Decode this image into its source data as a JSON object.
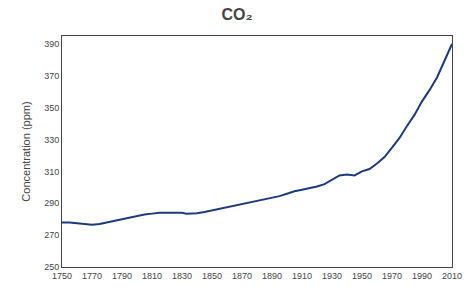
{
  "chart_data": {
    "type": "line",
    "title": "CO₂",
    "ylabel": "Concentration (ppm)",
    "x": [
      1750,
      1755,
      1760,
      1765,
      1770,
      1775,
      1780,
      1785,
      1790,
      1795,
      1800,
      1805,
      1810,
      1815,
      1820,
      1825,
      1830,
      1833,
      1836,
      1840,
      1845,
      1850,
      1855,
      1860,
      1865,
      1870,
      1875,
      1880,
      1885,
      1890,
      1895,
      1900,
      1905,
      1910,
      1915,
      1920,
      1925,
      1930,
      1935,
      1940,
      1945,
      1950,
      1955,
      1960,
      1965,
      1970,
      1975,
      1980,
      1985,
      1990,
      1995,
      2000,
      2005,
      2010
    ],
    "values": [
      278.0,
      278.0,
      277.5,
      277.0,
      276.5,
      277.0,
      278.0,
      279.0,
      280.0,
      281.0,
      282.0,
      283.0,
      283.5,
      284.0,
      284.0,
      284.0,
      284.0,
      283.5,
      283.5,
      283.8,
      284.5,
      285.5,
      286.5,
      287.5,
      288.5,
      289.5,
      290.5,
      291.5,
      292.5,
      293.5,
      294.5,
      296.0,
      297.5,
      298.5,
      299.5,
      300.5,
      302.0,
      305.0,
      307.5,
      308.0,
      307.5,
      310.0,
      311.5,
      315.0,
      319.0,
      325.0,
      331.0,
      338.5,
      345.5,
      354.0,
      361.0,
      369.0,
      379.0,
      390.0
    ],
    "color": "#1f3a7a",
    "xlim": [
      1750,
      2010
    ],
    "ylim": [
      250,
      395
    ],
    "xticks": [
      1750,
      1770,
      1790,
      1810,
      1830,
      1850,
      1870,
      1890,
      1910,
      1930,
      1950,
      1970,
      1990,
      2010
    ],
    "yticks": [
      250,
      270,
      290,
      310,
      330,
      350,
      370,
      390
    ],
    "grid": false
  }
}
